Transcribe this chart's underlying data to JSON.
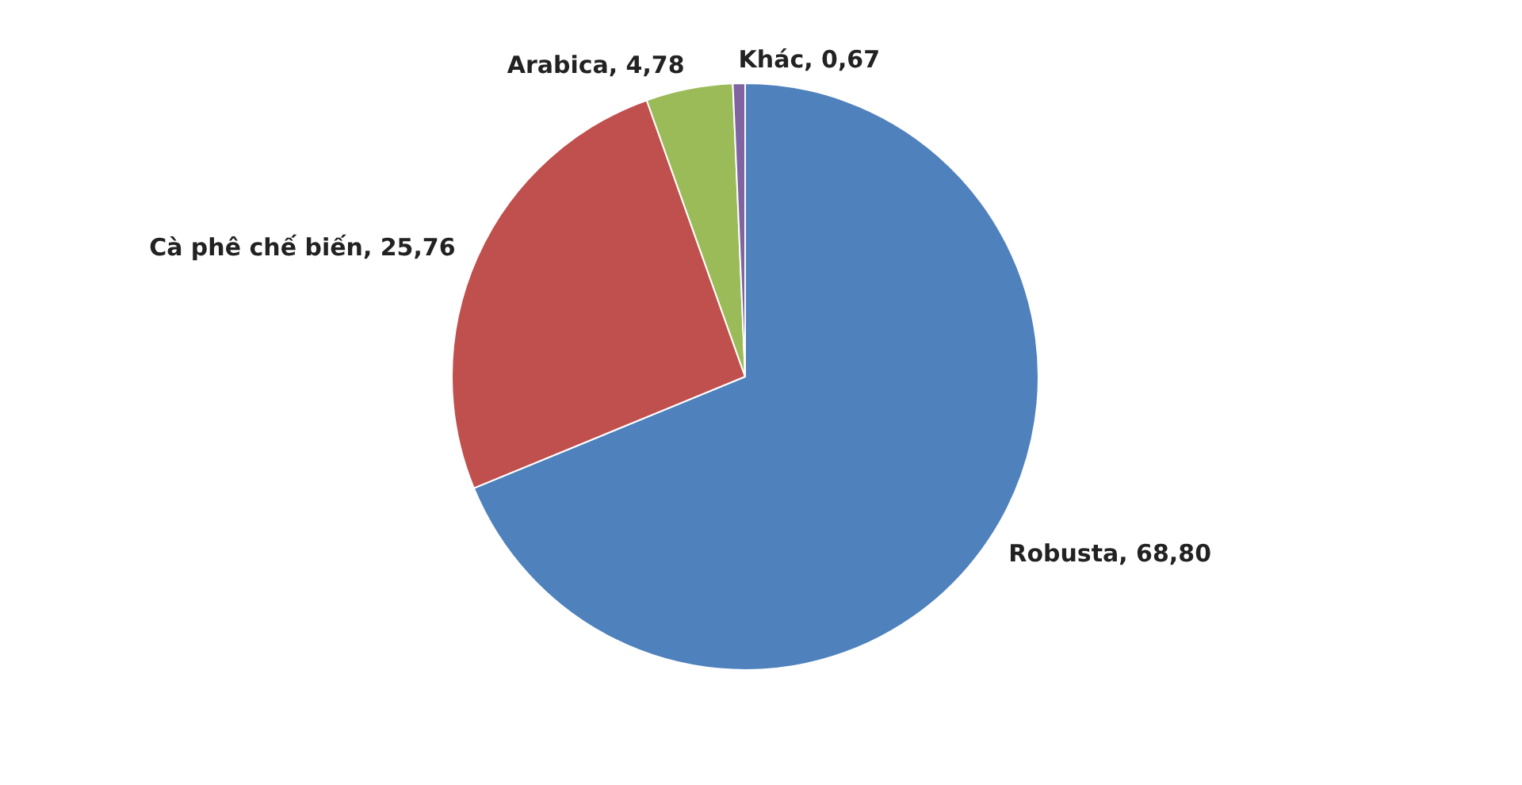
{
  "chart_data": {
    "type": "pie",
    "categories": [
      "Robusta",
      "Cà phê chế biến",
      "Arabica",
      "Khác"
    ],
    "values": [
      68.8,
      25.76,
      4.78,
      0.67
    ],
    "colors": [
      "#4f81bd",
      "#c0504d",
      "#9bbb59",
      "#8064a2"
    ],
    "value_labels": [
      "68,80",
      "25,76",
      "4,78",
      "0,67"
    ],
    "legend": false
  }
}
